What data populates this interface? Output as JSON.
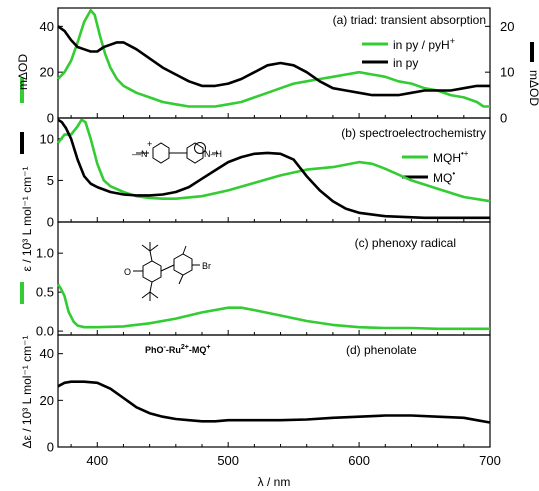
{
  "figure": {
    "xlabel": "λ / nm",
    "xlim": [
      370,
      700
    ],
    "xticks": [
      400,
      500,
      600,
      700
    ],
    "colors": {
      "green": "#33cc33",
      "black": "#000000"
    }
  },
  "chart_data": [
    {
      "type": "line",
      "label": "(a) triad: transient absorption",
      "ylabel_left": "mΔOD",
      "ylabel_right": "mΔOD",
      "ylim_left": [
        0,
        48
      ],
      "ylim_right": [
        0,
        24
      ],
      "yticks_left": [
        0,
        20,
        40
      ],
      "yticks_right": [
        0,
        10,
        20
      ],
      "legend": [
        {
          "text": "in py / pyH",
          "sup": "+",
          "color": "#33cc33"
        },
        {
          "text": "in py",
          "sup": "",
          "color": "#000000"
        }
      ],
      "series": [
        {
          "name": "in py / pyH+",
          "color": "#33cc33",
          "axis": "left",
          "x": [
            370,
            375,
            380,
            385,
            390,
            395,
            398,
            402,
            406,
            410,
            415,
            420,
            430,
            440,
            450,
            460,
            470,
            480,
            490,
            500,
            510,
            520,
            530,
            540,
            550,
            560,
            570,
            580,
            590,
            600,
            610,
            620,
            630,
            640,
            650,
            660,
            670,
            680,
            690,
            695,
            700
          ],
          "y": [
            17,
            20,
            25,
            33,
            42,
            47,
            45,
            36,
            28,
            22,
            17,
            14,
            11,
            9,
            7,
            6,
            5,
            5,
            5,
            6,
            7,
            9,
            11,
            13,
            15,
            16,
            17,
            18,
            19,
            20,
            19,
            18,
            16,
            15,
            13,
            12,
            10,
            9,
            7,
            5,
            5
          ]
        },
        {
          "name": "in py",
          "color": "#000000",
          "axis": "right",
          "x": [
            370,
            375,
            380,
            385,
            390,
            395,
            400,
            405,
            410,
            415,
            420,
            430,
            440,
            450,
            460,
            470,
            480,
            490,
            500,
            510,
            520,
            530,
            540,
            550,
            560,
            570,
            580,
            590,
            600,
            610,
            620,
            630,
            640,
            650,
            660,
            670,
            680,
            690,
            700
          ],
          "y": [
            20,
            19,
            17,
            15.5,
            15,
            14.5,
            14.5,
            15.5,
            16,
            16.5,
            16.5,
            15,
            13,
            11,
            9.5,
            8,
            7,
            7,
            7.5,
            8.5,
            10,
            11.5,
            12,
            11.5,
            10,
            8,
            6.5,
            6,
            5.5,
            5,
            5,
            5,
            5.5,
            6,
            6,
            6,
            6.5,
            7,
            7
          ]
        }
      ]
    },
    {
      "type": "line",
      "label": "(b) spectroelectrochemistry",
      "ylim": [
        0,
        12.5
      ],
      "yticks": [
        0,
        5,
        10
      ],
      "legend": [
        {
          "text": "MQH",
          "sup": "•+",
          "color": "#33cc33"
        },
        {
          "text": "MQ",
          "sup": "•",
          "color": "#000000"
        }
      ],
      "structure_labels": {
        "left": "—N",
        "charge": "+",
        "right": "N–H"
      },
      "series": [
        {
          "name": "MQH•+",
          "color": "#33cc33",
          "x": [
            370,
            375,
            380,
            385,
            388,
            391,
            395,
            400,
            405,
            410,
            420,
            430,
            440,
            450,
            460,
            480,
            500,
            520,
            540,
            560,
            580,
            590,
            600,
            610,
            620,
            640,
            660,
            680,
            700
          ],
          "y": [
            9.5,
            10.5,
            10.5,
            11.5,
            12.3,
            12,
            10,
            7,
            5,
            4.3,
            3.6,
            3.1,
            2.9,
            2.8,
            2.8,
            3.1,
            3.8,
            4.7,
            5.6,
            6.3,
            6.6,
            6.9,
            7.2,
            7,
            6.4,
            5,
            4,
            3,
            2.5
          ]
        },
        {
          "name": "MQ•",
          "color": "#000000",
          "x": [
            370,
            373,
            376,
            380,
            385,
            390,
            395,
            400,
            410,
            420,
            430,
            440,
            450,
            460,
            470,
            480,
            490,
            500,
            510,
            520,
            530,
            540,
            550,
            560,
            570,
            580,
            590,
            600,
            620,
            650,
            680,
            700
          ],
          "y": [
            12.3,
            12,
            11.3,
            10,
            7.5,
            5.5,
            4.6,
            4.2,
            3.6,
            3.3,
            3.2,
            3.2,
            3.3,
            3.6,
            4.2,
            5.2,
            6.2,
            7.2,
            7.8,
            8.2,
            8.3,
            8.2,
            7.5,
            5.5,
            3.8,
            2.5,
            1.6,
            1.1,
            0.7,
            0.5,
            0.5,
            0.5
          ]
        }
      ]
    },
    {
      "type": "line",
      "label": "(c) phenoxy radical",
      "ylabel": "ε / 10³ L mol⁻¹ cm⁻¹",
      "ylim": [
        -0.05,
        1.4
      ],
      "yticks": [
        0.0,
        0.5,
        1.0
      ],
      "yticklabels": [
        "0.0",
        "0.5",
        "1.0"
      ],
      "structure_labels": {
        "o": "O",
        "br": "Br"
      },
      "series": [
        {
          "name": "phenoxy radical",
          "color": "#33cc33",
          "x": [
            370,
            372,
            375,
            378,
            382,
            385,
            390,
            400,
            420,
            440,
            460,
            480,
            500,
            510,
            520,
            540,
            560,
            580,
            600,
            620,
            640,
            660,
            680,
            700
          ],
          "y": [
            0.6,
            0.55,
            0.45,
            0.25,
            0.12,
            0.07,
            0.05,
            0.05,
            0.06,
            0.1,
            0.16,
            0.24,
            0.3,
            0.3,
            0.27,
            0.2,
            0.13,
            0.08,
            0.05,
            0.04,
            0.04,
            0.03,
            0.03,
            0.03
          ]
        }
      ]
    },
    {
      "type": "line",
      "label": "(d) phenolate",
      "ylabel": "Δε / 10³ L mol⁻¹ cm⁻¹",
      "ylim": [
        0,
        48
      ],
      "yticks": [
        0,
        20,
        40
      ],
      "structure_labels": {
        "ph": "PhO",
        "ph_sup": "-",
        "ru": "-Ru",
        "ru_sup": "2+",
        "mq": "-MQ",
        "mq_sup": "+"
      },
      "series": [
        {
          "name": "phenolate",
          "color": "#000000",
          "x": [
            370,
            375,
            380,
            390,
            400,
            410,
            420,
            430,
            440,
            450,
            460,
            470,
            480,
            490,
            500,
            520,
            540,
            560,
            580,
            600,
            620,
            640,
            660,
            680,
            690,
            700
          ],
          "y": [
            26,
            27.5,
            28,
            28,
            27.5,
            25,
            21,
            17,
            14.5,
            13,
            12,
            11.5,
            11,
            11,
            11.5,
            11.5,
            11.5,
            11.8,
            12.5,
            13,
            13.5,
            13.5,
            13,
            12.5,
            11.5,
            10.5
          ]
        }
      ]
    }
  ]
}
